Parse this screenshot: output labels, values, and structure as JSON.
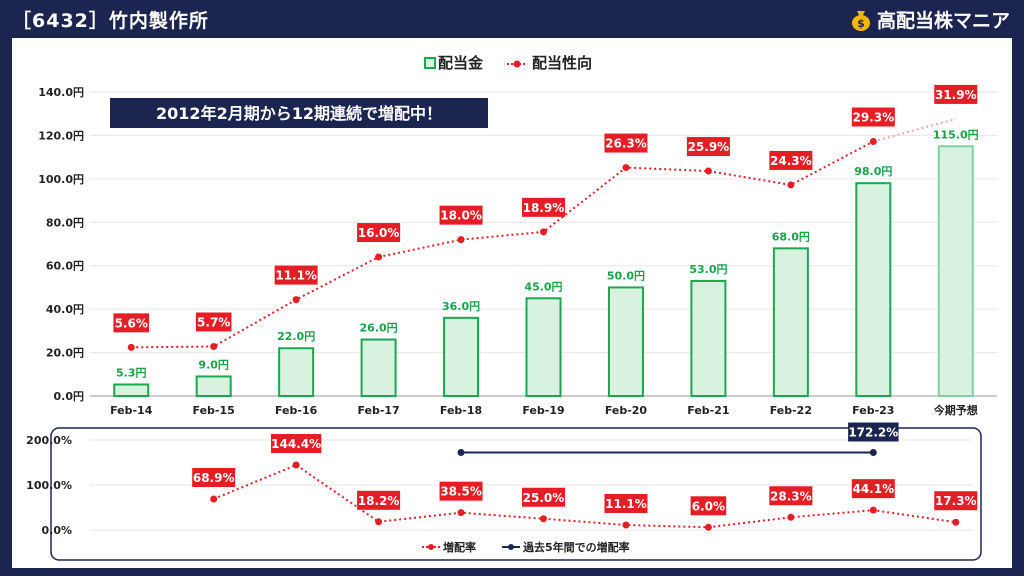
{
  "header": {
    "title": "［6432］竹内製作所",
    "brand": "高配当株マニア",
    "brand_icon": "money-bag-icon"
  },
  "banner": "2012年2月期から12期連続で増配中！",
  "colors": {
    "background": "#1b2550",
    "bar_fill": "#d8f2e0",
    "bar_stroke": "#1aa84f",
    "bar_label": "#16a34a",
    "ratio": "#e51e25",
    "five_year": "#1b2550"
  },
  "chart_data": [
    {
      "type": "bar",
      "legend": [
        "配当金",
        "配当性向"
      ],
      "legend_placement": "top-center",
      "categories": [
        "Feb-14",
        "Feb-15",
        "Feb-16",
        "Feb-17",
        "Feb-18",
        "Feb-19",
        "Feb-20",
        "Feb-21",
        "Feb-22",
        "Feb-23",
        "今期予想"
      ],
      "series": [
        {
          "name": "配当金",
          "kind": "bar",
          "values": [
            5.3,
            9.0,
            22.0,
            26.0,
            36.0,
            45.0,
            50.0,
            53.0,
            68.0,
            98.0,
            115.0
          ],
          "labels": [
            "5.3円",
            "9.0円",
            "22.0円",
            "26.0円",
            "36.0円",
            "45.0円",
            "50.0円",
            "53.0円",
            "68.0円",
            "98.0円",
            "115.0円"
          ]
        },
        {
          "name": "配当性向",
          "kind": "line",
          "values": [
            5.6,
            5.7,
            11.1,
            16.0,
            18.0,
            18.9,
            26.3,
            25.9,
            24.3,
            29.3,
            31.9
          ],
          "labels": [
            "5.6%",
            "5.7%",
            "11.1%",
            "16.0%",
            "18.0%",
            "18.9%",
            "26.3%",
            "25.9%",
            "24.3%",
            "29.3%",
            "31.9%"
          ]
        }
      ],
      "ylim": [
        0,
        140
      ],
      "yticks": [
        0,
        20,
        40,
        60,
        80,
        100,
        120,
        140
      ],
      "ytick_labels": [
        "0.0円",
        "20.0円",
        "40.0円",
        "60.0円",
        "80.0円",
        "100.0円",
        "120.0円",
        "140.0円"
      ],
      "grid": true
    },
    {
      "type": "line",
      "legend": [
        "増配率",
        "過去5年間での増配率"
      ],
      "legend_placement": "bottom-center",
      "categories": [
        "Feb-14",
        "Feb-15",
        "Feb-16",
        "Feb-17",
        "Feb-18",
        "Feb-19",
        "Feb-20",
        "Feb-21",
        "Feb-22",
        "Feb-23",
        "今期予想"
      ],
      "series": [
        {
          "name": "増配率",
          "values": [
            null,
            68.9,
            144.4,
            18.2,
            38.5,
            25.0,
            11.1,
            6.0,
            28.3,
            44.1,
            17.3
          ],
          "labels": [
            "",
            "68.9%",
            "144.4%",
            "18.2%",
            "38.5%",
            "25.0%",
            "11.1%",
            "6.0%",
            "28.3%",
            "44.1%",
            "17.3%"
          ]
        },
        {
          "name": "過去5年間での増配率",
          "from": "Feb-18",
          "to": "Feb-23",
          "value": 172.2,
          "label": "172.2%"
        }
      ],
      "ylim": [
        0,
        200
      ],
      "yticks": [
        0,
        100,
        200
      ],
      "ytick_labels": [
        "0.0%",
        "100.0%",
        "200.0%"
      ],
      "grid": true
    }
  ]
}
